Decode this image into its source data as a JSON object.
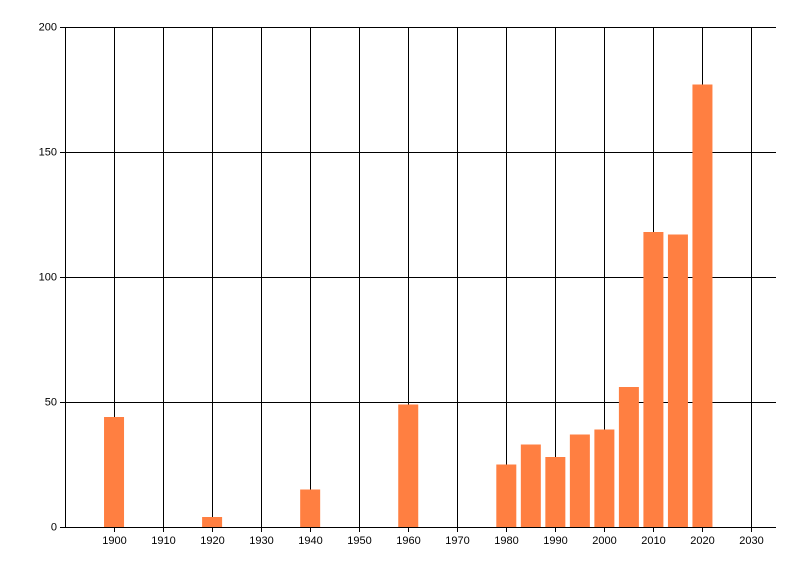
{
  "chart_data": {
    "type": "bar",
    "x": [
      1900,
      1920,
      1940,
      1960,
      1980,
      1985,
      1990,
      1995,
      2000,
      2005,
      2010,
      2015,
      2020
    ],
    "values": [
      44,
      4,
      15,
      49,
      25,
      33,
      28,
      37,
      39,
      56,
      118,
      117,
      177
    ],
    "color": "#ff7f41",
    "xlim": [
      1890,
      2035
    ],
    "xticks": [
      1900,
      1910,
      1920,
      1930,
      1940,
      1950,
      1960,
      1970,
      1980,
      1990,
      2000,
      2010,
      2020,
      2030
    ],
    "ylim": [
      0,
      200
    ],
    "yticks": [
      0,
      50,
      100,
      150,
      200
    ],
    "grid": true
  }
}
